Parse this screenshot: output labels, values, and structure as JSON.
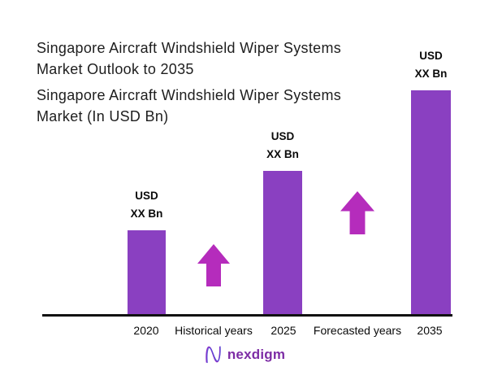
{
  "header": {
    "title_lines": [
      "Singapore Aircraft Windshield Wiper Systems",
      "Market Outlook to 2035"
    ],
    "subtitle_lines": [
      "Singapore Aircraft Windshield Wiper Systems",
      "Market (In USD Bn)"
    ]
  },
  "chart_data": {
    "type": "bar",
    "title": "Singapore Aircraft Windshield Wiper Systems Market Outlook to 2035",
    "subtitle": "Singapore Aircraft Windshield Wiper Systems Market (In USD Bn)",
    "unit": "USD Bn",
    "categories": [
      "2020",
      "2025",
      "2035"
    ],
    "values": [
      "XX",
      "XX",
      "XX"
    ],
    "bar_labels": [
      {
        "line1": "USD",
        "line2": "XX Bn"
      },
      {
        "line1": "USD",
        "line2": "XX Bn"
      },
      {
        "line1": "USD",
        "line2": "XX Bn"
      }
    ],
    "relative_heights": [
      0.377,
      0.641,
      1.0
    ],
    "period_annotations": [
      {
        "label": "Historical years"
      },
      {
        "label": "Forecasted years"
      }
    ],
    "bar_color": "#8A40C1",
    "arrow_color": "#B52CBC",
    "axis_color": "#111111",
    "grid": false,
    "legend": false
  },
  "footer": {
    "brand_name": "nexdigm"
  }
}
